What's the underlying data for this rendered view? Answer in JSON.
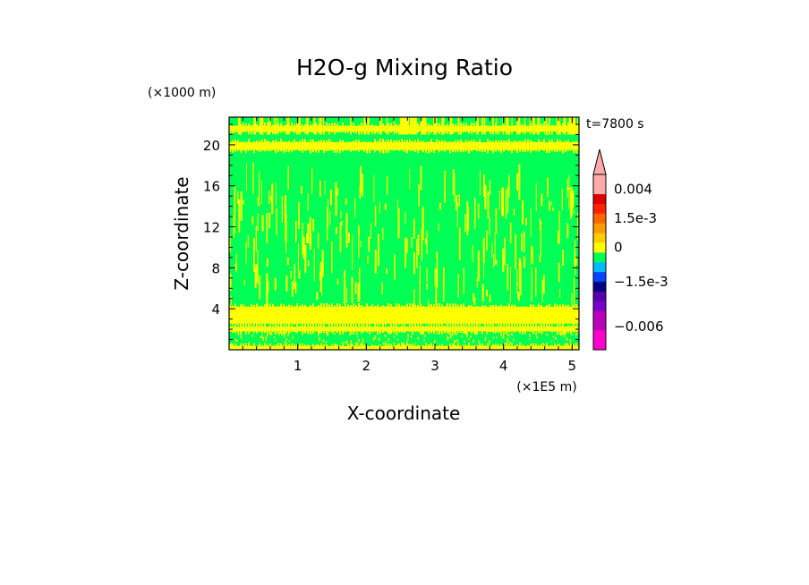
{
  "chart_data": {
    "type": "heatmap",
    "title": "H2O-g Mixing Ratio",
    "xlabel": "X-coordinate",
    "ylabel": "Z-coordinate",
    "x_unit": "(×1E5 m)",
    "y_unit": "(×1000 m)",
    "time_label": "t=7800 s",
    "xlim": [
      0.0,
      5.1
    ],
    "ylim": [
      0.0,
      22.7
    ],
    "x_ticks": [
      1,
      2,
      3,
      4,
      5
    ],
    "x_tick_labels": [
      "1",
      "2",
      "3",
      "4",
      "5"
    ],
    "y_ticks": [
      4,
      8,
      12,
      16,
      20
    ],
    "y_tick_labels": [
      "4",
      "8",
      "12",
      "16",
      "20"
    ],
    "colorbar": {
      "labels": [
        {
          "value": 0.004,
          "text": "0.004"
        },
        {
          "value": 0.0015,
          "text": "1.5e-3"
        },
        {
          "value": 0,
          "text": "0"
        },
        {
          "value": -0.0015,
          "text": "−1.5e-3"
        },
        {
          "value": -0.006,
          "text": "−0.006"
        }
      ],
      "levels": [
        {
          "color": "#ff00cc"
        },
        {
          "color": "#ff00cc"
        },
        {
          "color": "#bb00bb"
        },
        {
          "color": "#bb00bb"
        },
        {
          "color": "#7700cc"
        },
        {
          "color": "#5500aa"
        },
        {
          "color": "#000080"
        },
        {
          "color": "#0044ff"
        },
        {
          "color": "#00bbff"
        },
        {
          "color": "#00ff55"
        },
        {
          "color": "#ffff00"
        },
        {
          "color": "#ffcc00"
        },
        {
          "color": "#ff9900"
        },
        {
          "color": "#ff6600"
        },
        {
          "color": "#ff2200"
        },
        {
          "color": "#dd0000"
        },
        {
          "color": "#ffaaaa"
        },
        {
          "color": "#ffaaaa"
        }
      ],
      "extend_max_color": "#ffaaaa"
    },
    "field": {
      "background_color": "#00ff55",
      "anomaly_color": "#ffff00",
      "bands": [
        {
          "z_min": 0.0,
          "z_max": 0.35,
          "color": "#ffff00"
        },
        {
          "z_min": 1.8,
          "z_max": 2.25,
          "color": "#ffff00"
        },
        {
          "z_min": 2.55,
          "z_max": 4.2,
          "color": "#ffff00"
        },
        {
          "z_min": 19.5,
          "z_max": 20.25,
          "color": "#ffff00"
        },
        {
          "z_min": 21.3,
          "z_max": 21.85,
          "color": "#ffff00"
        }
      ],
      "streak_region": [
        4.2,
        19.5
      ]
    }
  }
}
